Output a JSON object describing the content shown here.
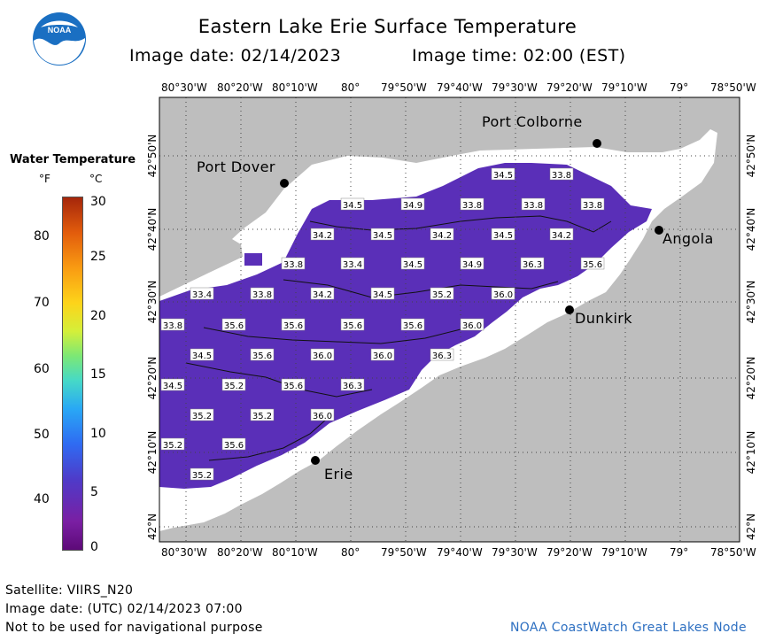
{
  "header": {
    "title": "Eastern Lake Erie Surface Temperature",
    "image_date": "Image date: 02/14/2023",
    "image_time": "Image time: 02:00 (EST)"
  },
  "logo": {
    "label": "NOAA",
    "colors": [
      "#1a6fc2",
      "#ffffff"
    ]
  },
  "legend": {
    "title": "Water Temperature",
    "unit_f": "°F",
    "unit_c": "°C",
    "f_ticks": [
      "80",
      "70",
      "60",
      "50",
      "40"
    ],
    "c_ticks": [
      "30",
      "25",
      "20",
      "15",
      "10",
      "5",
      "0"
    ]
  },
  "map": {
    "longitude_labels": [
      "80°30'W",
      "80°20'W",
      "80°10'W",
      "80°",
      "79°50'W",
      "79°40'W",
      "79°30'W",
      "79°20'W",
      "79°10'W",
      "79°",
      "78°50'W"
    ],
    "latitude_labels": [
      "42°50'N",
      "42°40'N",
      "42°30'N",
      "42°20'N",
      "42°10'N",
      "42°N"
    ],
    "cities": {
      "port_colborne": "Port Colborne",
      "port_dover": "Port Dover",
      "angola": "Angola",
      "dunkirk": "Dunkirk",
      "erie": "Erie"
    },
    "temperature_labels": [
      "34.5",
      "33.8",
      "34.5",
      "34.9",
      "33.8",
      "33.8",
      "33.8",
      "34.2",
      "34.5",
      "34.2",
      "34.5",
      "34.2",
      "33.8",
      "33.4",
      "34.5",
      "34.9",
      "36.3",
      "35.6",
      "33.4",
      "33.8",
      "34.2",
      "34.5",
      "35.2",
      "36.0",
      "33.8",
      "35.6",
      "35.6",
      "35.6",
      "35.6",
      "36.0",
      "34.5",
      "35.6",
      "36.0",
      "36.0",
      "36.3",
      "34.5",
      "35.2",
      "35.6",
      "36.3",
      "35.2",
      "35.2",
      "36.0",
      "35.2",
      "35.6",
      "35.2"
    ],
    "colors": {
      "land": "#bebebe",
      "no_data": "#ffffff",
      "water": "#5a2fb8"
    }
  },
  "footer": {
    "satellite": "Satellite: VIIRS_N20",
    "utc_date": "Image date: (UTC) 02/14/2023  07:00",
    "disclaimer": "Not to be used for navigational purpose",
    "node": "NOAA CoastWatch Great Lakes Node"
  }
}
